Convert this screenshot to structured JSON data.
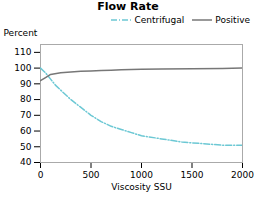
{
  "chart_data": {
    "type": "line",
    "title": "Flow Rate",
    "x_label": "Viscosity SSU",
    "y_label": "Percent",
    "xlim": [
      0,
      2000
    ],
    "ylim": [
      40,
      115
    ],
    "xticks": [
      0,
      500,
      1000,
      1500,
      2000
    ],
    "yticks": [
      40,
      50,
      60,
      70,
      80,
      90,
      100,
      110
    ],
    "grid": false,
    "legend": "upper right",
    "series": [
      {
        "name": "Centrifugal",
        "color": "#6cc8d4",
        "line_style": "dashdot",
        "x": [
          0,
          50,
          100,
          150,
          200,
          300,
          400,
          500,
          600,
          700,
          800,
          900,
          1000,
          1200,
          1400,
          1600,
          1800,
          2000
        ],
        "values": [
          100,
          97,
          93,
          89,
          86,
          80,
          75,
          70,
          66,
          63,
          61,
          59,
          57,
          55,
          53,
          52,
          51,
          51
        ]
      },
      {
        "name": "Positive",
        "color": "#777777",
        "line_style": "solid",
        "x": [
          0,
          50,
          100,
          200,
          300,
          400,
          500,
          600,
          700,
          800,
          1000,
          1200,
          1500,
          1800,
          2000
        ],
        "values": [
          92,
          94,
          96,
          97,
          97.5,
          98,
          98.2,
          98.5,
          98.7,
          99,
          99.2,
          99.4,
          99.6,
          99.8,
          100
        ]
      }
    ]
  }
}
